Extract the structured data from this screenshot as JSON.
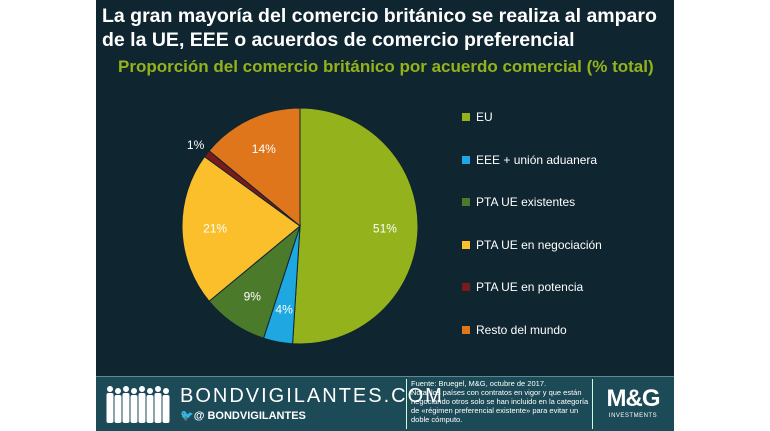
{
  "chart_data": {
    "type": "pie",
    "title": "La gran mayoría del comercio británico se realiza al amparo de la UE, EEE o acuerdos de comercio preferencial",
    "subtitle": "Proporción del comercio británico por acuerdo comercial (% total)",
    "slices": [
      {
        "label": "EU",
        "value": 51,
        "data_label": "51%",
        "color": "#94b21b"
      },
      {
        "label": "EEE + unión aduanera",
        "value": 4,
        "data_label": "4%",
        "color": "#1ea7e1"
      },
      {
        "label": "PTA UE existentes",
        "value": 9,
        "data_label": "9%",
        "color": "#4a7a2a"
      },
      {
        "label": "PTA UE en negociación",
        "value": 21,
        "data_label": "21%",
        "color": "#fbbf2b"
      },
      {
        "label": "PTA UE en potencia",
        "value": 1,
        "data_label": "1%",
        "color": "#7a1a1a"
      },
      {
        "label": "Resto del mundo",
        "value": 14,
        "data_label": "14%",
        "color": "#e0761c"
      }
    ],
    "legend_position": "right"
  },
  "footer": {
    "site": "BONDVIGILANTES.COM",
    "handle": "🐦@ BONDVIGILANTES",
    "source": "Fuente: Bruegel, M&G, octubre de 2017.",
    "note": "Nota: los países con contratos en vigor y que están negociando otros solo se han incluido en la categoría de «régimen preferencial existente» para evitar un doble cómputo.",
    "logo": "M&G",
    "logo_sub": "INVESTMENTS"
  }
}
